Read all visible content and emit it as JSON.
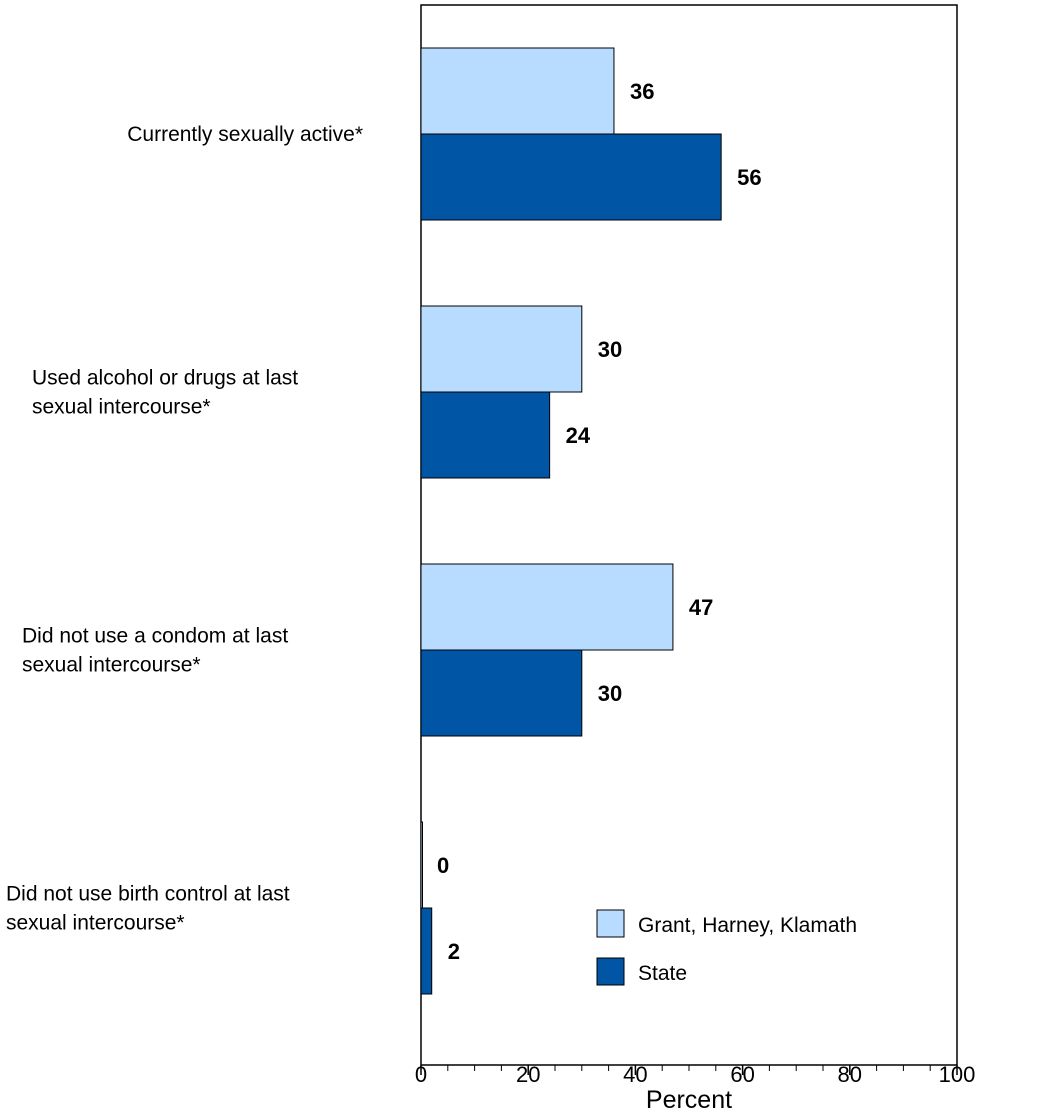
{
  "chart_data": {
    "type": "bar",
    "orientation": "horizontal",
    "categories": [
      [
        "Currently sexually active*"
      ],
      [
        "Used alcohol or drugs at last",
        "sexual intercourse*"
      ],
      [
        "Did not use a condom at last",
        " sexual intercourse*"
      ],
      [
        "Did not use birth control at last",
        "sexual intercourse*"
      ]
    ],
    "series": [
      {
        "name": "Grant, Harney, Klamath",
        "color": "#b8dcff",
        "values": [
          36,
          30,
          47,
          0
        ]
      },
      {
        "name": "State",
        "color": "#0055a5",
        "values": [
          56,
          24,
          30,
          2
        ]
      }
    ],
    "xlabel": "Percent",
    "xlim": [
      0,
      100
    ],
    "xticks": [
      0,
      20,
      40,
      60,
      80,
      100
    ],
    "grid": false,
    "legend_position": "bottom-right"
  }
}
